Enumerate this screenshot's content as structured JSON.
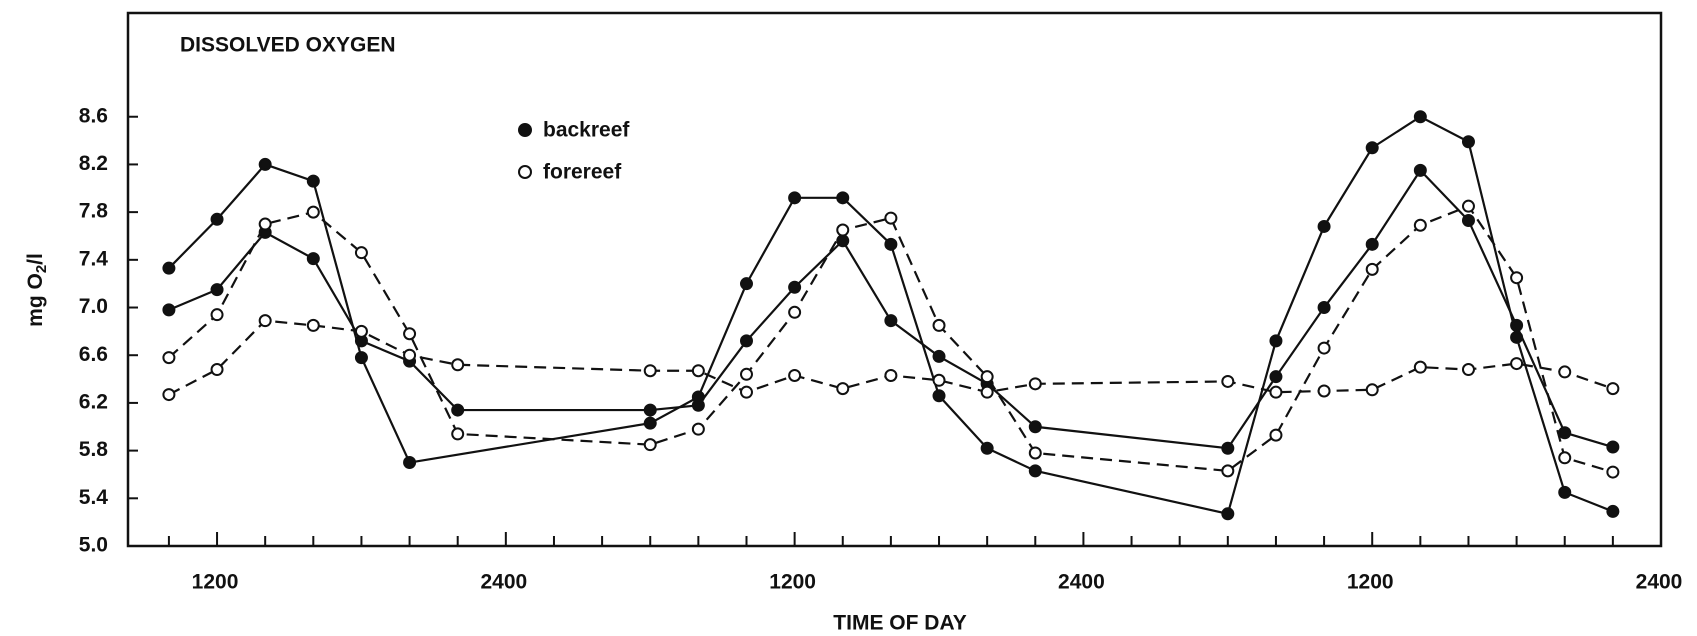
{
  "chart_data": {
    "type": "line",
    "title": "DISSOLVED OXYGEN",
    "xlabel": "TIME OF DAY",
    "ylabel": {
      "main": "mg O",
      "sub": "2",
      "tail": "/l"
    },
    "xlim": [
      8.3,
      72
    ],
    "ylim": [
      5,
      9.47
    ],
    "xticks": [
      {
        "value": 12,
        "label": "1200"
      },
      {
        "value": 24,
        "label": "2400"
      },
      {
        "value": 36,
        "label": "1200"
      },
      {
        "value": 48,
        "label": "2400"
      },
      {
        "value": 60,
        "label": "1200"
      },
      {
        "value": 72,
        "label": "2400"
      }
    ],
    "xminorticks": [
      10,
      14,
      16,
      18,
      20,
      22,
      26,
      28,
      30,
      32,
      34,
      38,
      40,
      42,
      44,
      46,
      50,
      52,
      54,
      56,
      58,
      62,
      64,
      66,
      68,
      70
    ],
    "yticks": [
      {
        "value": 5,
        "label": "5.0"
      },
      5.4,
      5.8,
      6.2,
      6.6,
      {
        "value": 7,
        "label": "7.0"
      },
      7.4,
      7.8,
      8.2,
      8.6
    ],
    "series": [
      {
        "name": "backreef",
        "color": "#111",
        "dashed": false,
        "marker": "filled",
        "x": [
          10,
          12,
          14,
          16,
          18,
          20,
          22,
          30,
          32,
          34,
          36,
          38,
          40,
          42,
          44,
          46,
          54,
          56,
          58,
          60,
          62,
          64,
          66,
          68,
          70
        ],
        "values": [
          6.98,
          7.15,
          7.63,
          7.41,
          6.72,
          6.55,
          6.14,
          6.14,
          6.18,
          6.72,
          7.17,
          7.56,
          6.89,
          6.59,
          6.36,
          6.0,
          5.82,
          6.42,
          7.0,
          7.53,
          8.15,
          7.73,
          6.85,
          5.95,
          5.83
        ]
      },
      {
        "name": "backreef",
        "color": "#111",
        "dashed": false,
        "marker": "filled",
        "x": [
          10,
          12,
          14,
          16,
          18,
          20,
          30,
          32,
          34,
          36,
          38,
          40,
          42,
          44,
          46,
          54,
          56,
          58,
          60,
          62,
          64,
          66,
          68,
          70
        ],
        "values": [
          7.33,
          7.74,
          8.2,
          8.06,
          6.58,
          5.7,
          6.03,
          6.25,
          7.2,
          7.92,
          7.92,
          7.53,
          6.26,
          5.82,
          5.63,
          5.27,
          6.72,
          7.68,
          8.34,
          8.6,
          8.39,
          6.75,
          5.45,
          5.29
        ]
      },
      {
        "name": "forereef",
        "color": "#111",
        "dashed": true,
        "marker": "open",
        "x": [
          10,
          12,
          14,
          16,
          18,
          20,
          22,
          30,
          32,
          34,
          36,
          38,
          40,
          42,
          44,
          46,
          54,
          56,
          58,
          60,
          62,
          64,
          66,
          68,
          70
        ],
        "values": [
          6.58,
          6.94,
          7.7,
          7.8,
          7.46,
          6.78,
          5.94,
          5.85,
          5.98,
          6.44,
          6.96,
          7.65,
          7.75,
          6.85,
          6.42,
          5.78,
          5.63,
          5.93,
          6.66,
          7.32,
          7.69,
          7.85,
          7.25,
          5.74,
          5.62
        ]
      },
      {
        "name": "forereef",
        "color": "#111",
        "dashed": true,
        "marker": "open",
        "x": [
          10,
          12,
          14,
          16,
          18,
          20,
          22,
          30,
          32,
          34,
          36,
          38,
          40,
          42,
          44,
          46,
          54,
          56,
          58,
          60,
          62,
          64,
          66,
          68,
          70
        ],
        "values": [
          6.27,
          6.48,
          6.89,
          6.85,
          6.8,
          6.6,
          6.52,
          6.47,
          6.47,
          6.29,
          6.43,
          6.32,
          6.43,
          6.39,
          6.29,
          6.36,
          6.38,
          6.29,
          6.3,
          6.31,
          6.5,
          6.48,
          6.53,
          6.46,
          6.32
        ]
      }
    ]
  }
}
